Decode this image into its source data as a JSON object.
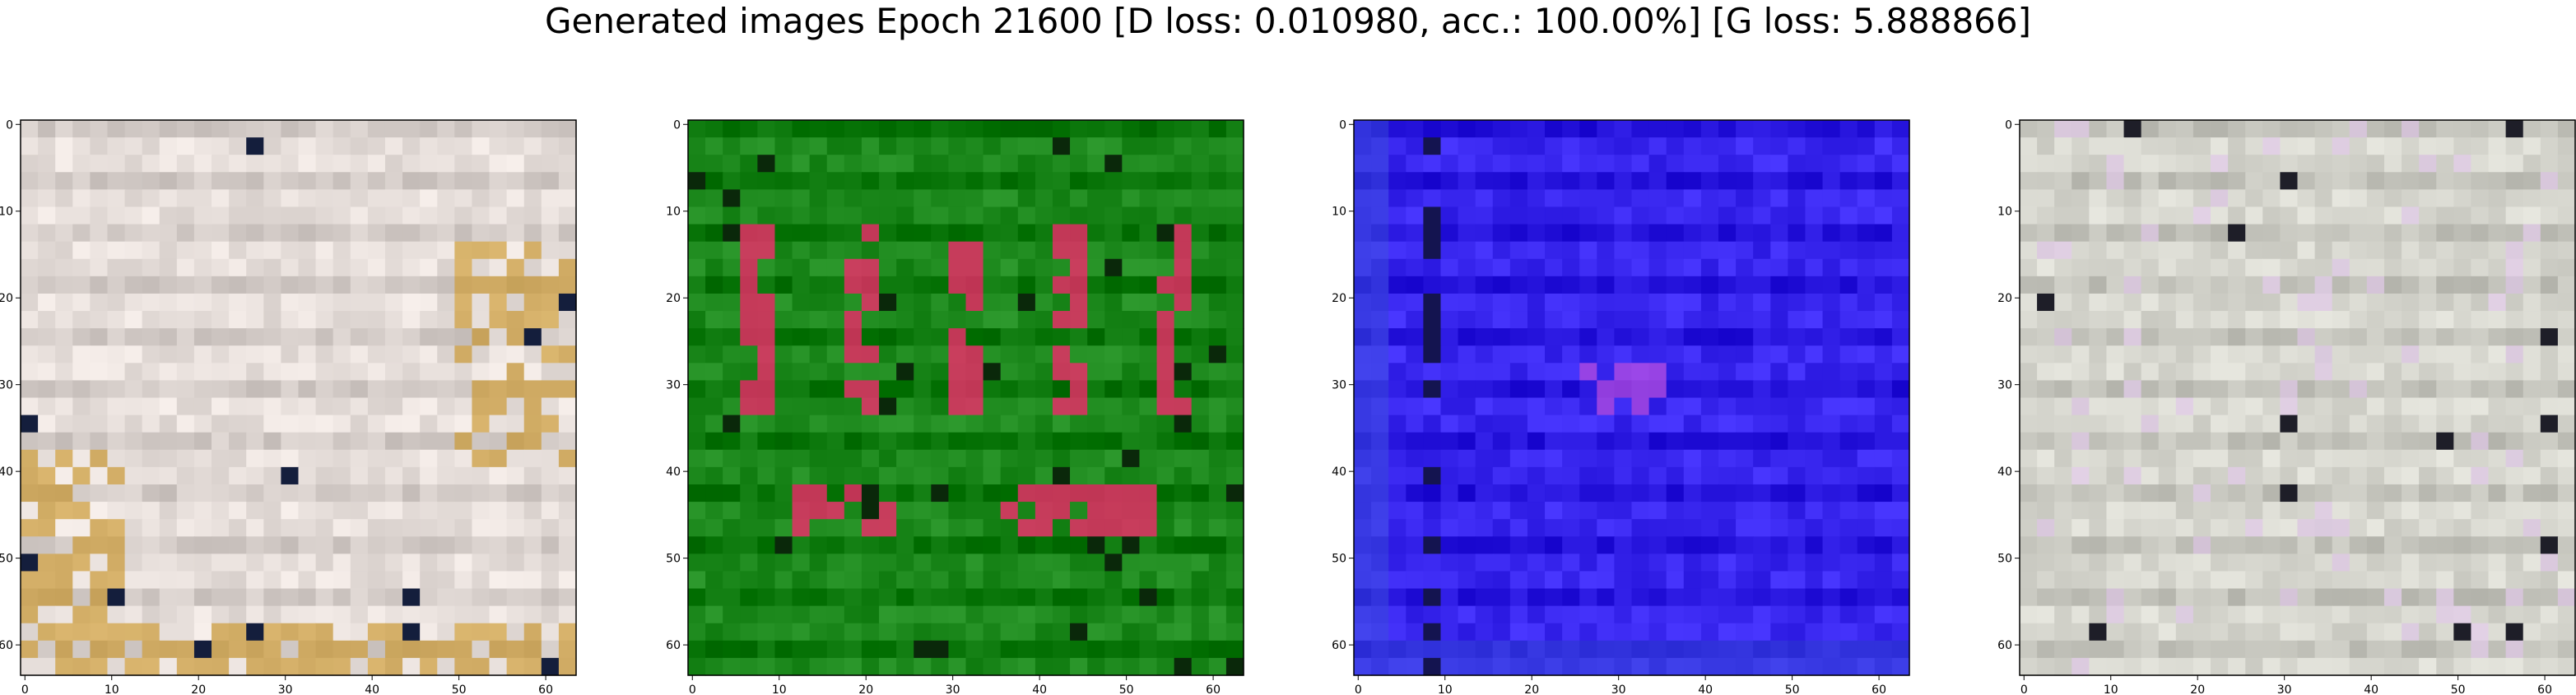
{
  "title": "Generated images Epoch 21600 [D loss: 0.010980, acc.: 100.00%] [G loss: 5.888866]",
  "chart_data": [
    {
      "type": "heatmap",
      "image_extent": [
        -0.5,
        63.5
      ],
      "xticks": [
        0,
        10,
        20,
        30,
        40,
        50,
        60
      ],
      "yticks": [
        0,
        10,
        20,
        30,
        40,
        50,
        60
      ],
      "xtick_labels": [
        "0",
        "10",
        "20",
        "30",
        "40",
        "50",
        "60"
      ],
      "ytick_labels": [
        "0",
        "10",
        "20",
        "30",
        "40",
        "50",
        "60"
      ],
      "dominant_color": "#e8e0dc",
      "accent_color": "#c8901c",
      "description": "beige-gold"
    },
    {
      "type": "heatmap",
      "image_extent": [
        -0.5,
        63.5
      ],
      "xticks": [
        0,
        10,
        20,
        30,
        40,
        50,
        60
      ],
      "yticks": [
        0,
        10,
        20,
        30,
        40,
        50,
        60
      ],
      "xtick_labels": [
        "0",
        "10",
        "20",
        "30",
        "40",
        "50",
        "60"
      ],
      "ytick_labels": [
        "0",
        "10",
        "20",
        "30",
        "40",
        "50",
        "60"
      ],
      "dominant_color": "#1e8a1e",
      "accent_color": "#f0286a",
      "description": "green-magenta"
    },
    {
      "type": "heatmap",
      "image_extent": [
        -0.5,
        63.5
      ],
      "xticks": [
        0,
        10,
        20,
        30,
        40,
        50,
        60
      ],
      "yticks": [
        0,
        10,
        20,
        30,
        40,
        50,
        60
      ],
      "xtick_labels": [
        "0",
        "10",
        "20",
        "30",
        "40",
        "50",
        "60"
      ],
      "ytick_labels": [
        "0",
        "10",
        "20",
        "30",
        "40",
        "50",
        "60"
      ],
      "dominant_color": "#3a28f0",
      "accent_color": "#c050e0",
      "description": "blue-violet"
    },
    {
      "type": "heatmap",
      "image_extent": [
        -0.5,
        63.5
      ],
      "xticks": [
        0,
        10,
        20,
        30,
        40,
        50,
        60
      ],
      "yticks": [
        0,
        10,
        20,
        30,
        40,
        50,
        60
      ],
      "xtick_labels": [
        "0",
        "10",
        "20",
        "30",
        "40",
        "50",
        "60"
      ],
      "ytick_labels": [
        "0",
        "10",
        "20",
        "30",
        "40",
        "50",
        "60"
      ],
      "dominant_color": "#d8d8d0",
      "accent_color": "#e0c8e8",
      "description": "grey-pink"
    }
  ]
}
